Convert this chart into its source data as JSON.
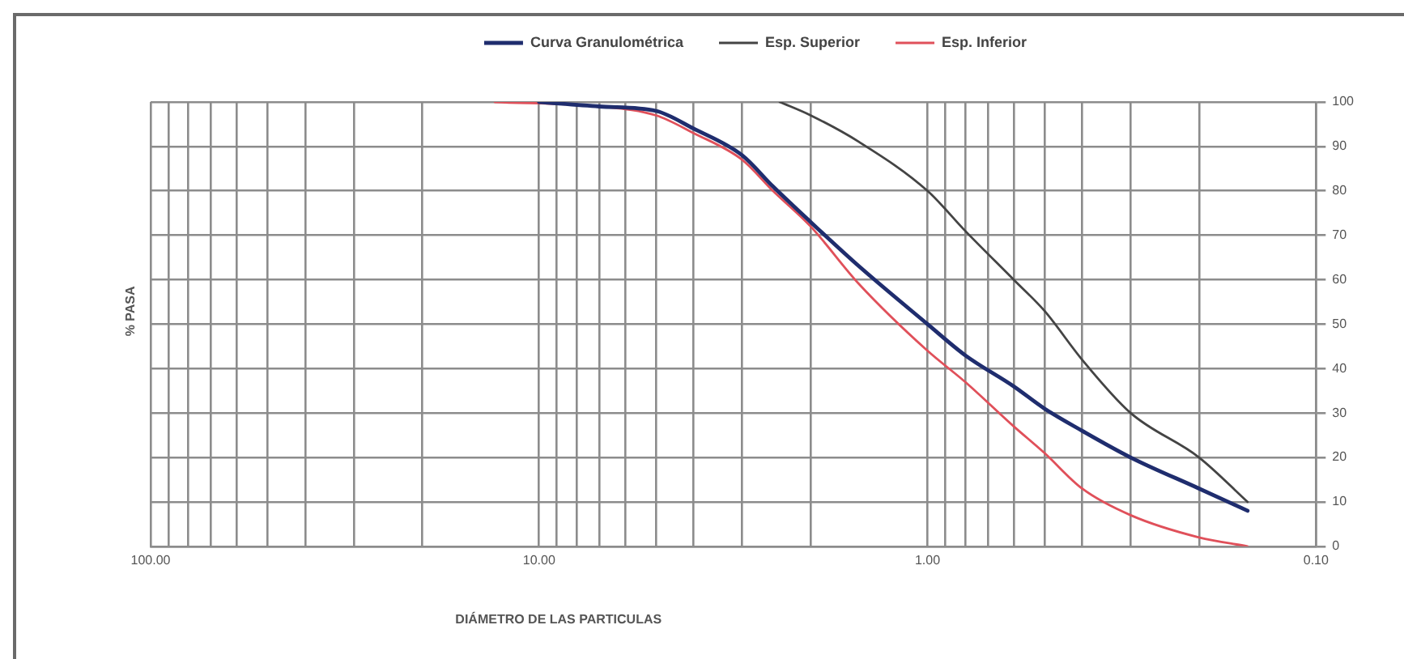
{
  "chart_data": {
    "type": "line",
    "xlabel": "DIÁMETRO DE LAS PARTICULAS",
    "ylabel": "% PASA",
    "log": "x",
    "xlim": [
      100,
      0.1
    ],
    "xticks": [
      {
        "value": 100,
        "label": "100.00"
      },
      {
        "value": 90,
        "label": null
      },
      {
        "value": 80,
        "label": null
      },
      {
        "value": 70,
        "label": null
      },
      {
        "value": 60,
        "label": null
      },
      {
        "value": 50,
        "label": null
      },
      {
        "value": 40,
        "label": null
      },
      {
        "value": 30,
        "label": null
      },
      {
        "value": 20,
        "label": null
      },
      {
        "value": 10,
        "label": "10.00"
      },
      {
        "value": 9,
        "label": null
      },
      {
        "value": 8,
        "label": null
      },
      {
        "value": 7,
        "label": null
      },
      {
        "value": 6,
        "label": null
      },
      {
        "value": 5,
        "label": null
      },
      {
        "value": 4,
        "label": null
      },
      {
        "value": 3,
        "label": null
      },
      {
        "value": 2,
        "label": null
      },
      {
        "value": 1,
        "label": "1.00"
      },
      {
        "value": 0.9,
        "label": null
      },
      {
        "value": 0.8,
        "label": null
      },
      {
        "value": 0.7,
        "label": null
      },
      {
        "value": 0.6,
        "label": null
      },
      {
        "value": 0.5,
        "label": null
      },
      {
        "value": 0.4,
        "label": null
      },
      {
        "value": 0.3,
        "label": null
      },
      {
        "value": 0.2,
        "label": null
      },
      {
        "value": 0.1,
        "label": "0.10"
      }
    ],
    "ylim": [
      0,
      100
    ],
    "yticks": [
      0,
      10,
      20,
      30,
      40,
      50,
      60,
      70,
      80,
      90,
      100
    ],
    "grid": true,
    "legend": "top",
    "marker": "none",
    "line_style": "solid",
    "series": [
      {
        "name": "Curva Granulométrica",
        "color": "#1f2d6e",
        "x": [
          10,
          7,
          5,
          4,
          3,
          2.5,
          2,
          1.5,
          1,
          0.8,
          0.6,
          0.5,
          0.4,
          0.3,
          0.2,
          0.15
        ],
        "values": [
          100,
          99,
          98,
          94,
          88,
          81,
          73,
          63,
          50,
          43,
          36,
          31,
          26,
          20,
          13,
          8
        ]
      },
      {
        "name": "Esp. Superior",
        "color": "#444444",
        "x": [
          2.4,
          2,
          1.5,
          1,
          0.8,
          0.6,
          0.5,
          0.4,
          0.3,
          0.2,
          0.15
        ],
        "values": [
          100,
          97,
          91,
          80,
          71,
          60,
          53,
          42,
          30,
          20,
          10
        ]
      },
      {
        "name": "Esp. Inferior",
        "color": "#e0505a",
        "x": [
          13,
          7,
          5,
          4,
          3,
          2.5,
          2,
          1.5,
          1,
          0.8,
          0.6,
          0.5,
          0.4,
          0.3,
          0.2,
          0.15
        ],
        "values": [
          100,
          99,
          97,
          93,
          87,
          80,
          72,
          59,
          44,
          37,
          27,
          21,
          13,
          7,
          2,
          0
        ]
      }
    ]
  }
}
